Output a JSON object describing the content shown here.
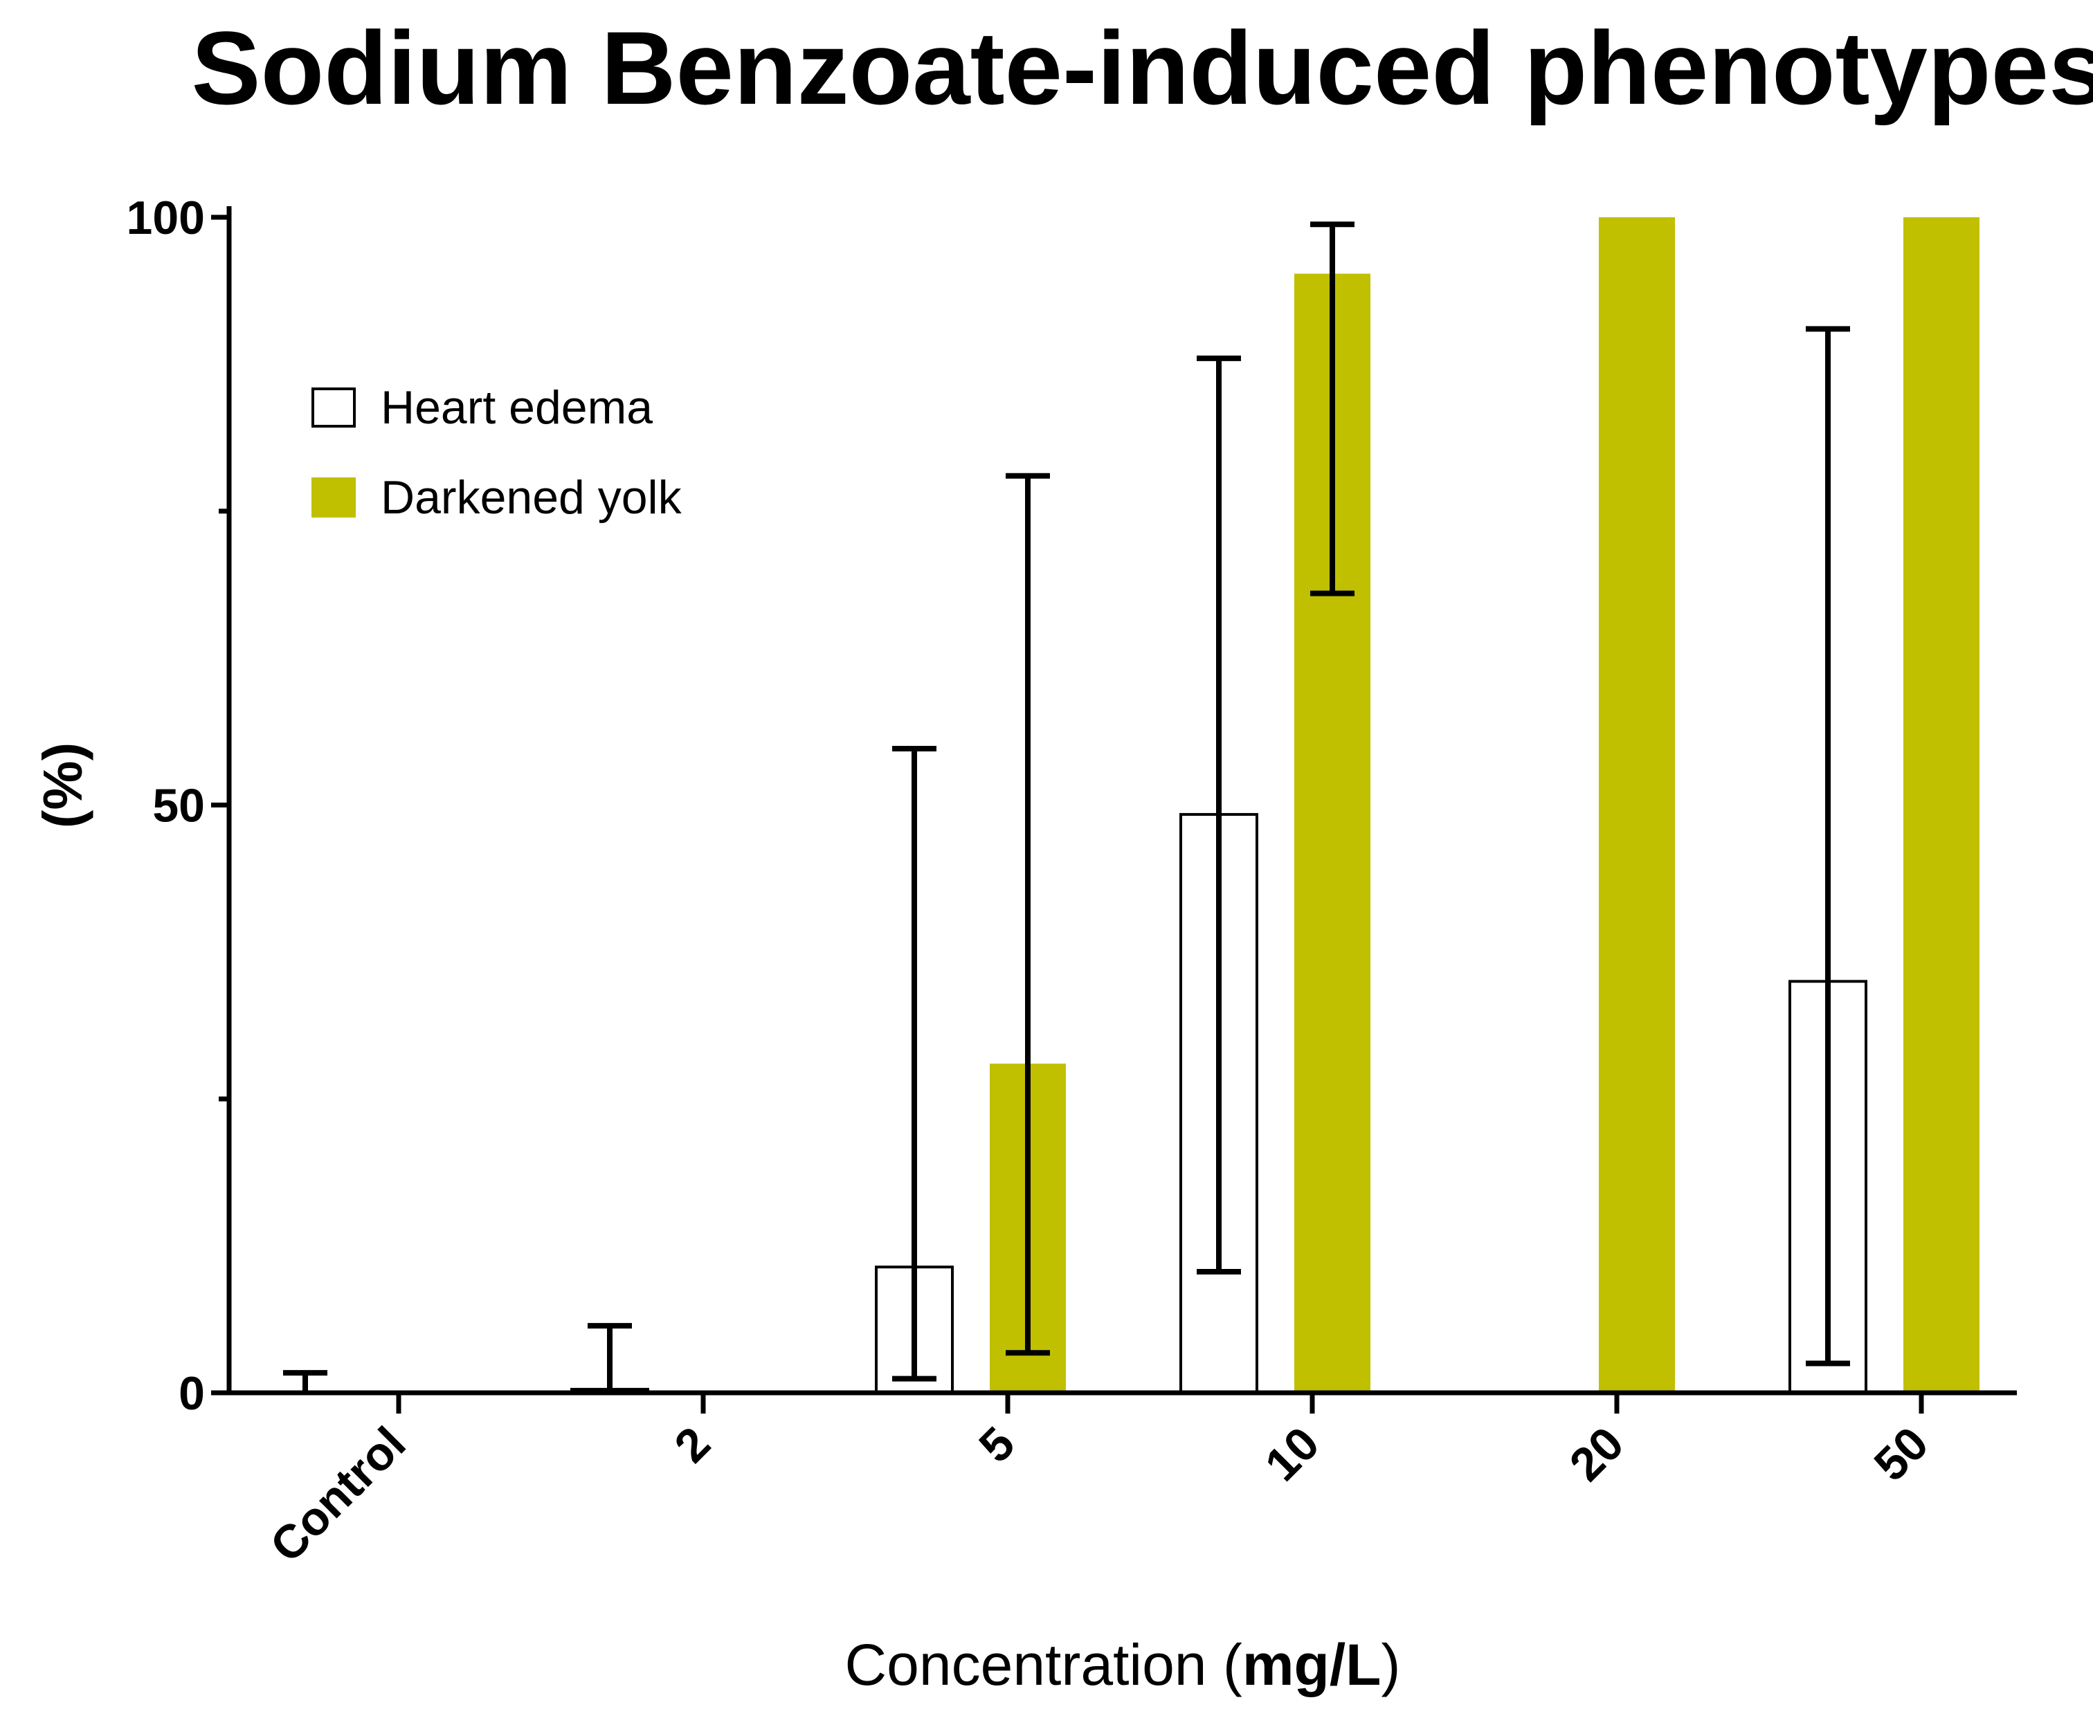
{
  "chart_data": {
    "type": "bar",
    "title": "Sodium Benzoate-induced phenotypes",
    "xlabel_parts": [
      "Concentration (",
      "mg/L",
      ")"
    ],
    "ylabel": "(%)",
    "categories": [
      "Control",
      "2",
      "5",
      "10",
      "20",
      "50"
    ],
    "ylim": [
      0,
      100
    ],
    "yticks": [
      "0",
      "50",
      "100"
    ],
    "yminor_ticks": [
      25,
      75
    ],
    "legend_position": "top-left",
    "series": [
      {
        "name": "Heart edema",
        "style": "outline",
        "color": "#ffffff",
        "edge_color": "#000000",
        "values": [
          0,
          0.3,
          10.7,
          49.2,
          0,
          35.0
        ],
        "error_upper": [
          1.7,
          5.7,
          54.8,
          88.0,
          null,
          90.5
        ],
        "error_lower": [
          null,
          null,
          1.2,
          10.3,
          null,
          2.5
        ]
      },
      {
        "name": "Darkened yolk",
        "style": "filled",
        "color": "#c0c000",
        "values": [
          0,
          0,
          28.0,
          95.2,
          100,
          100
        ],
        "error_upper": [
          null,
          null,
          78.0,
          99.4,
          null,
          null
        ],
        "error_lower": [
          null,
          null,
          3.4,
          68.0,
          null,
          null
        ]
      }
    ]
  }
}
